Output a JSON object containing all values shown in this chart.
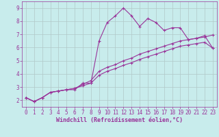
{
  "xlabel": "Windchill (Refroidissement éolien,°C)",
  "bg_color": "#c8ecec",
  "line_color": "#993399",
  "grid_color": "#b0c8c8",
  "line1_x": [
    0,
    1,
    2,
    3,
    4,
    5,
    6,
    7,
    8,
    9,
    10,
    11,
    12,
    13,
    14,
    15,
    16,
    17,
    18,
    19,
    20,
    21,
    22,
    23
  ],
  "line1_y": [
    2.2,
    1.9,
    2.2,
    2.6,
    2.7,
    2.8,
    2.8,
    3.3,
    3.3,
    6.5,
    7.9,
    8.4,
    9.0,
    8.4,
    7.6,
    8.2,
    7.9,
    7.3,
    7.5,
    7.5,
    6.6,
    6.7,
    6.9,
    5.95
  ],
  "line2_x": [
    0,
    1,
    2,
    3,
    4,
    5,
    6,
    7,
    8,
    9,
    10,
    11,
    12,
    13,
    14,
    15,
    16,
    17,
    18,
    19,
    20,
    21,
    22,
    23
  ],
  "line2_y": [
    2.2,
    1.9,
    2.2,
    2.6,
    2.7,
    2.8,
    2.9,
    3.2,
    3.5,
    4.2,
    4.5,
    4.7,
    5.0,
    5.2,
    5.5,
    5.7,
    5.9,
    6.1,
    6.3,
    6.5,
    6.6,
    6.7,
    6.8,
    6.95
  ],
  "line3_x": [
    0,
    1,
    2,
    3,
    4,
    5,
    6,
    7,
    8,
    9,
    10,
    11,
    12,
    13,
    14,
    15,
    16,
    17,
    18,
    19,
    20,
    21,
    22,
    23
  ],
  "line3_y": [
    2.2,
    1.9,
    2.2,
    2.6,
    2.7,
    2.8,
    2.9,
    3.1,
    3.3,
    3.9,
    4.2,
    4.4,
    4.65,
    4.85,
    5.1,
    5.3,
    5.5,
    5.7,
    5.9,
    6.1,
    6.2,
    6.3,
    6.4,
    5.95
  ],
  "xlim": [
    -0.5,
    23.5
  ],
  "ylim": [
    1.5,
    9.5
  ],
  "xticks": [
    0,
    1,
    2,
    3,
    4,
    5,
    6,
    7,
    8,
    9,
    10,
    11,
    12,
    13,
    14,
    15,
    16,
    17,
    18,
    19,
    20,
    21,
    22,
    23
  ],
  "yticks": [
    2,
    3,
    4,
    5,
    6,
    7,
    8,
    9
  ],
  "line_color2": "#993399",
  "tick_color": "#993399",
  "xlabel_color": "#993399",
  "marker": "+",
  "markersize": 3.5,
  "linewidth": 0.8,
  "tick_fontsize": 5.5,
  "xlabel_fontsize": 6.0
}
